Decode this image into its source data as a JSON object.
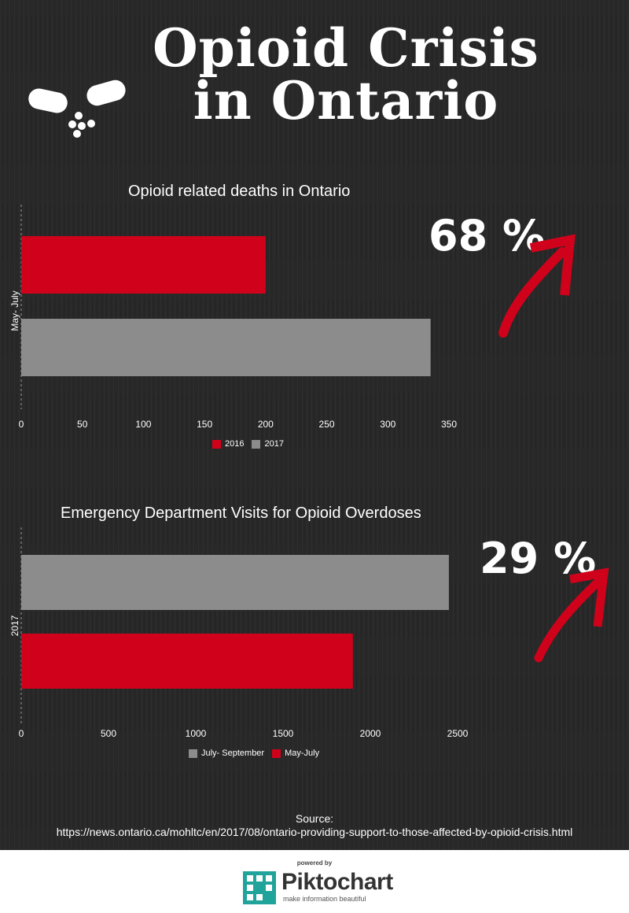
{
  "header": {
    "title_line1": "Opioid Crisis",
    "title_line2": "in Ontario",
    "icon": "pill-capsule-icon"
  },
  "colors": {
    "background": "#282828",
    "red": "#d0021b",
    "gray": "#8c8c8c",
    "text": "#ffffff"
  },
  "chart_data": [
    {
      "type": "bar",
      "orientation": "horizontal",
      "title": "Opioid related deaths in Ontario",
      "categories": [
        "May- July"
      ],
      "series": [
        {
          "name": "2016",
          "values": [
            200
          ],
          "color": "#d0021b"
        },
        {
          "name": "2017",
          "values": [
            335
          ],
          "color": "#8c8c8c"
        }
      ],
      "xlim": [
        0,
        350
      ],
      "xticks": [
        0,
        50,
        100,
        150,
        200,
        250,
        300,
        350
      ],
      "legend": "bottom",
      "grid": false,
      "annotation": "68 %"
    },
    {
      "type": "bar",
      "orientation": "horizontal",
      "title": "Emergency Department Visits for Opioid Overdoses",
      "categories": [
        "2017"
      ],
      "series": [
        {
          "name": "July- September",
          "values": [
            2450
          ],
          "color": "#8c8c8c"
        },
        {
          "name": "May-July",
          "values": [
            1900
          ],
          "color": "#d0021b"
        }
      ],
      "xlim": [
        0,
        2500
      ],
      "xticks": [
        0,
        500,
        1000,
        1500,
        2000,
        2500
      ],
      "legend": "bottom",
      "grid": false,
      "annotation": "29 %"
    }
  ],
  "source": {
    "label": "Source:",
    "url": "https://news.ontario.ca/mohltc/en/2017/08/ontario-providing-support-to-those-affected-by-opioid-crisis.html"
  },
  "footer": {
    "powered_by": "powered by",
    "brand": "Piktochart",
    "tagline": "make information beautiful",
    "logo_icon": "piktochart-logo-icon"
  }
}
